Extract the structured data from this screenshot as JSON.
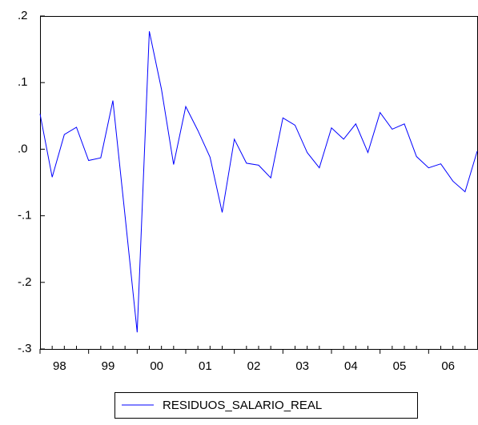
{
  "chart_data": {
    "type": "line",
    "x": [
      1998,
      1998.25,
      1998.5,
      1998.75,
      1999,
      1999.25,
      1999.5,
      1999.75,
      2000,
      2000.25,
      2000.5,
      2000.75,
      2001,
      2001.25,
      2001.5,
      2001.75,
      2002,
      2002.25,
      2002.5,
      2002.75,
      2003,
      2003.25,
      2003.5,
      2003.75,
      2004,
      2004.25,
      2004.5,
      2004.75,
      2005,
      2005.25,
      2005.5,
      2005.75,
      2006,
      2006.25,
      2006.5,
      2006.75,
      2007
    ],
    "series": [
      {
        "name": "RESIDUOS_SALARIO_REAL",
        "color": "#0000ff",
        "values": [
          0.053,
          -0.042,
          0.022,
          0.033,
          -0.017,
          -0.013,
          0.073,
          -0.1,
          -0.275,
          0.177,
          0.09,
          -0.023,
          0.064,
          0.028,
          -0.012,
          -0.095,
          0.015,
          -0.021,
          -0.024,
          -0.043,
          0.047,
          0.036,
          -0.005,
          -0.028,
          0.032,
          0.015,
          0.038,
          -0.005,
          0.055,
          0.03,
          0.038,
          -0.011,
          -0.028,
          -0.022,
          -0.048,
          -0.064,
          -0.003
        ]
      }
    ],
    "xlim": [
      1998,
      2007
    ],
    "xticks": [
      {
        "value": 1998.5,
        "label": "98"
      },
      {
        "value": 1999.5,
        "label": "99"
      },
      {
        "value": 2000.5,
        "label": "00"
      },
      {
        "value": 2001.5,
        "label": "01"
      },
      {
        "value": 2002.5,
        "label": "02"
      },
      {
        "value": 2003.5,
        "label": "03"
      },
      {
        "value": 2004.5,
        "label": "04"
      },
      {
        "value": 2005.5,
        "label": "05"
      },
      {
        "value": 2006.5,
        "label": "06"
      }
    ],
    "ylim": [
      -0.3,
      0.2
    ],
    "yticks": [
      {
        "value": -0.3,
        "label": "-.3"
      },
      {
        "value": -0.2,
        "label": "-.2"
      },
      {
        "value": -0.1,
        "label": "-.1"
      },
      {
        "value": 0,
        "label": ".0"
      },
      {
        "value": 0.1,
        "label": ".1"
      },
      {
        "value": 0.2,
        "label": ".2"
      }
    ],
    "legend": "bottom"
  }
}
